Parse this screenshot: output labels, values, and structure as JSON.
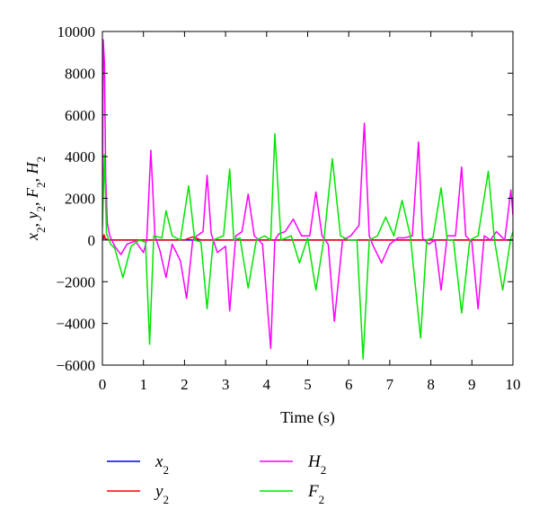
{
  "chart_data": {
    "type": "line",
    "title": "",
    "xlabel": "Time (s)",
    "ylabel": {
      "parts": [
        {
          "t": "x",
          "i": true
        },
        {
          "t": "2",
          "s": true
        },
        {
          "t": ", "
        },
        {
          "t": "y",
          "i": true
        },
        {
          "t": "2",
          "s": true
        },
        {
          "t": ", "
        },
        {
          "t": "F",
          "i": true
        },
        {
          "t": "2",
          "s": true
        },
        {
          "t": ", "
        },
        {
          "t": "H",
          "i": true
        },
        {
          "t": "2",
          "s": true
        }
      ]
    },
    "xlim": [
      0,
      10
    ],
    "ylim": [
      -6000,
      10000
    ],
    "xticks": [
      "0",
      "1",
      "2",
      "3",
      "4",
      "5",
      "6",
      "7",
      "8",
      "9",
      "10"
    ],
    "yticks": [
      "10000",
      "8000",
      "6000",
      "4000",
      "2000",
      "0",
      "−2000",
      "−4000",
      "−6000"
    ],
    "grid": false,
    "legend_position": "bottom",
    "series": [
      {
        "name": "x",
        "sub": "2",
        "color": "#0000ff",
        "x": [
          0,
          0.04,
          0.07,
          0.1,
          0.2,
          0.5,
          1,
          2,
          3,
          4,
          5,
          6,
          7,
          8,
          9,
          10
        ],
        "y": [
          0,
          150,
          60,
          20,
          0,
          0,
          0,
          0,
          0,
          0,
          0,
          0,
          0,
          0,
          0,
          0
        ]
      },
      {
        "name": "y",
        "sub": "2",
        "color": "#ff0000",
        "x": [
          0,
          0.04,
          0.07,
          0.1,
          0.2,
          0.5,
          1,
          2,
          2.2,
          2.4,
          3,
          4,
          5,
          6,
          7,
          8,
          9,
          10
        ],
        "y": [
          0,
          250,
          80,
          20,
          0,
          0,
          0,
          0,
          150,
          0,
          0,
          0,
          0,
          0,
          0,
          0,
          0,
          0
        ]
      },
      {
        "name": "H",
        "sub": "2",
        "color": "#ff00ff",
        "x": [
          0,
          0.02,
          0.05,
          0.08,
          0.12,
          0.18,
          0.3,
          0.45,
          0.6,
          0.8,
          1.0,
          1.08,
          1.18,
          1.28,
          1.4,
          1.55,
          1.7,
          1.9,
          2.05,
          2.2,
          2.3,
          2.45,
          2.55,
          2.65,
          2.8,
          3.0,
          3.1,
          3.25,
          3.4,
          3.55,
          3.7,
          3.9,
          4.1,
          4.2,
          4.3,
          4.45,
          4.65,
          4.85,
          5.05,
          5.2,
          5.35,
          5.5,
          5.65,
          5.85,
          6.05,
          6.25,
          6.38,
          6.5,
          6.6,
          6.8,
          7.0,
          7.2,
          7.35,
          7.55,
          7.7,
          7.8,
          7.95,
          8.1,
          8.25,
          8.4,
          8.6,
          8.75,
          8.85,
          9.0,
          9.15,
          9.3,
          9.45,
          9.6,
          9.8,
          9.95,
          10.0
        ],
        "y": [
          1000,
          9600,
          8500,
          3000,
          800,
          200,
          -300,
          -700,
          -200,
          -50,
          -600,
          0,
          4300,
          200,
          -500,
          -1800,
          -200,
          -1000,
          -2800,
          0,
          200,
          400,
          3100,
          300,
          -600,
          -300,
          -3400,
          200,
          400,
          2200,
          200,
          -200,
          -5200,
          0,
          300,
          400,
          1000,
          200,
          200,
          2300,
          200,
          -200,
          -3900,
          0,
          200,
          700,
          5600,
          200,
          -300,
          -1100,
          -200,
          100,
          100,
          200,
          4700,
          100,
          -200,
          0,
          -2400,
          200,
          200,
          3500,
          200,
          -100,
          -3300,
          200,
          0,
          400,
          0,
          2400,
          1200
        ]
      },
      {
        "name": "F",
        "sub": "2",
        "color": "#00e600",
        "x": [
          0,
          0.05,
          0.1,
          0.2,
          0.3,
          0.5,
          0.7,
          0.9,
          1.05,
          1.15,
          1.25,
          1.45,
          1.55,
          1.7,
          1.9,
          2.1,
          2.25,
          2.4,
          2.55,
          2.7,
          2.95,
          3.1,
          3.2,
          3.35,
          3.55,
          3.75,
          3.95,
          4.1,
          4.2,
          4.35,
          4.6,
          4.8,
          5.0,
          5.2,
          5.4,
          5.6,
          5.8,
          6.0,
          6.2,
          6.35,
          6.5,
          6.7,
          6.9,
          7.1,
          7.3,
          7.5,
          7.75,
          7.9,
          8.05,
          8.25,
          8.4,
          8.55,
          8.75,
          8.95,
          9.15,
          9.4,
          9.55,
          9.75,
          9.95,
          10.0
        ],
        "y": [
          600,
          4100,
          300,
          -200,
          -400,
          -1800,
          -300,
          0,
          -100,
          -5000,
          200,
          100,
          1400,
          200,
          0,
          2600,
          0,
          -100,
          -3300,
          0,
          200,
          3400,
          0,
          100,
          -2300,
          0,
          200,
          0,
          5100,
          0,
          200,
          -1100,
          100,
          -2400,
          100,
          3900,
          200,
          0,
          0,
          -5700,
          0,
          200,
          1100,
          200,
          1900,
          200,
          -4700,
          0,
          100,
          2500,
          0,
          0,
          -3500,
          0,
          200,
          3300,
          0,
          -2400,
          100,
          400
        ]
      }
    ]
  }
}
